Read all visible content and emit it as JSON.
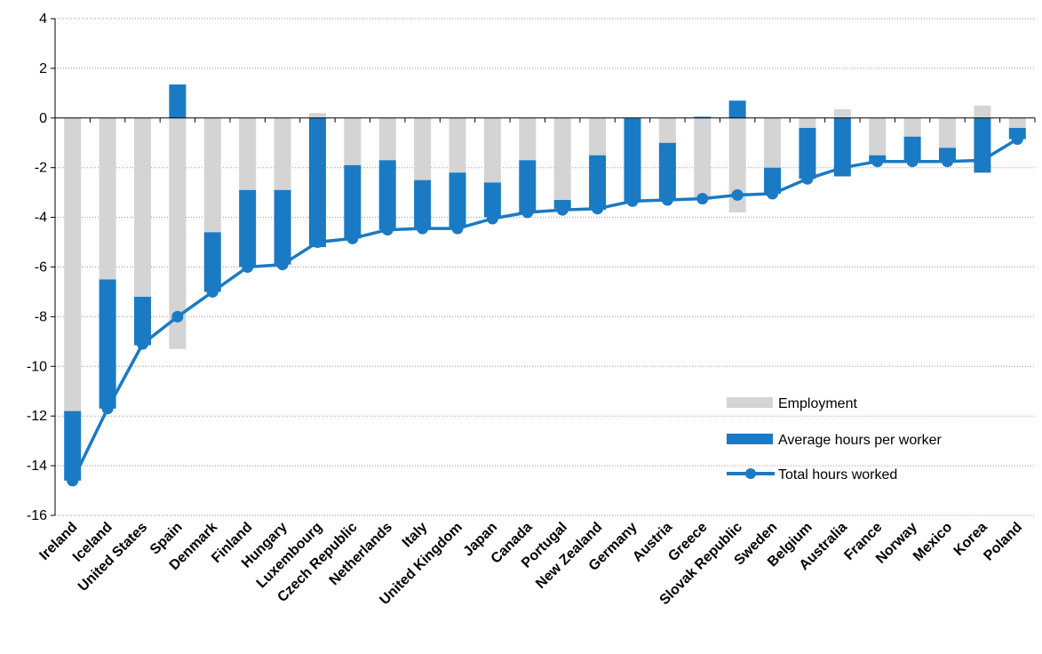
{
  "chart_data": {
    "type": "bar",
    "categories": [
      "Ireland",
      "Iceland",
      "United States",
      "Spain",
      "Denmark",
      "Finland",
      "Hungary",
      "Luxembourg",
      "Czech Republic",
      "Netherlands",
      "Italy",
      "United Kingdom",
      "Japan",
      "Canada",
      "Portugal",
      "New Zealand",
      "Germany",
      "Austria",
      "Greece",
      "Slovak Republic",
      "Sweden",
      "Belgium",
      "Australia",
      "France",
      "Norway",
      "Mexico",
      "Korea",
      "Poland"
    ],
    "series": [
      {
        "name": "Employment",
        "type": "bar",
        "color": "#d4d4d4",
        "values": [
          -11.8,
          -6.5,
          -7.2,
          -9.3,
          -4.6,
          -2.9,
          -2.9,
          0.2,
          -1.9,
          -1.7,
          -2.5,
          -2.2,
          -2.6,
          -1.7,
          -3.3,
          -1.5,
          0.0,
          -1.0,
          -3.3,
          -3.8,
          -2.0,
          -0.4,
          0.35,
          -1.5,
          -0.75,
          -1.2,
          0.5,
          -0.4
        ]
      },
      {
        "name": "Average hours per worker",
        "type": "bar",
        "color": "#1a7ac4",
        "values": [
          -2.8,
          -5.2,
          -1.95,
          1.35,
          -2.4,
          -3.1,
          -3.0,
          -5.2,
          -2.95,
          -2.8,
          -1.95,
          -2.2,
          -1.4,
          -2.1,
          -0.35,
          -2.2,
          -3.4,
          -2.25,
          0.05,
          0.7,
          -1.05,
          -2.05,
          -2.35,
          -0.25,
          -0.95,
          -0.55,
          -2.2,
          -0.45
        ]
      },
      {
        "name": "Total hours worked",
        "type": "line",
        "color": "#1a7ac4",
        "values": [
          -14.6,
          -11.7,
          -9.1,
          -8.0,
          -7.0,
          -6.0,
          -5.9,
          -5.0,
          -4.85,
          -4.5,
          -4.45,
          -4.45,
          -4.05,
          -3.8,
          -3.7,
          -3.65,
          -3.35,
          -3.3,
          -3.25,
          -3.1,
          -3.05,
          -2.45,
          -2.0,
          -1.75,
          -1.75,
          -1.75,
          -1.7,
          -0.85
        ]
      }
    ],
    "ylim": [
      -16,
      4
    ],
    "yticks": [
      -16,
      -14,
      -12,
      -10,
      -8,
      -6,
      -4,
      -2,
      0,
      2,
      4
    ],
    "grid": true,
    "legend": {
      "placement": "bottom-right"
    }
  }
}
